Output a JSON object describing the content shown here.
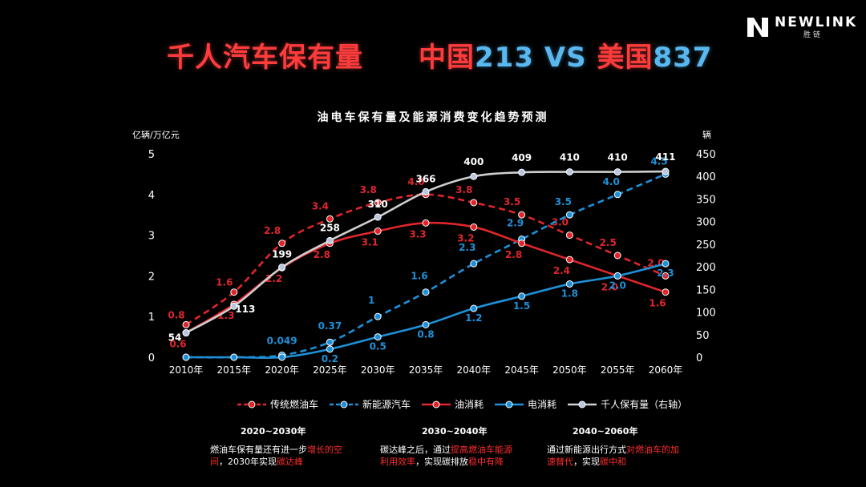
{
  "logo": {
    "name": "NEWLINK",
    "sub": "胜链"
  },
  "headline": {
    "left": "千人汽车保有量",
    "china_label": "中国",
    "china_value": "213",
    "vs": " VS ",
    "us_label": "美国",
    "us_value": "837"
  },
  "colors": {
    "red": "#e0262b",
    "blue": "#1f90d8",
    "white": "#cfcfcf"
  },
  "chart_data": {
    "type": "line",
    "title": "油电车保有量及能源消费变化趋势预测",
    "ylabel_left": "亿辆/万亿元",
    "ylabel_right": "辆",
    "x": [
      "2010年",
      "2015年",
      "2020年",
      "2025年",
      "2030年",
      "2035年",
      "2040年",
      "2045年",
      "2050年",
      "2055年",
      "2060年"
    ],
    "ylim_left": [
      0,
      5
    ],
    "yticks_left": [
      0,
      1,
      2,
      3,
      4,
      5
    ],
    "ylim_right": [
      0,
      450
    ],
    "yticks_right": [
      0,
      50,
      100,
      150,
      200,
      250,
      300,
      350,
      400,
      450
    ],
    "series": [
      {
        "name": "传统燃油车",
        "axis": "left",
        "color": "#e0262b",
        "dashed": true,
        "values": [
          0.8,
          1.6,
          2.8,
          3.4,
          3.8,
          4.0,
          3.8,
          3.5,
          3.0,
          2.5,
          2.0
        ],
        "labels": [
          "0.8",
          "1.6",
          "2.8",
          "3.4",
          "3.8",
          "4.0",
          "3.8",
          "3.5",
          "3.0",
          "2.5",
          "2.0"
        ]
      },
      {
        "name": "新能源汽车",
        "axis": "left",
        "color": "#1f90d8",
        "dashed": true,
        "values": [
          0,
          0,
          0.049,
          0.37,
          1.0,
          1.6,
          2.3,
          2.9,
          3.5,
          4.0,
          4.5
        ],
        "labels": [
          "",
          "",
          "0.049",
          "0.37",
          "1",
          "1.6",
          "2.3",
          "2.9",
          "3.5",
          "4.0",
          "4.5"
        ]
      },
      {
        "name": "油消耗",
        "axis": "left",
        "color": "#e0262b",
        "dashed": false,
        "values": [
          0.6,
          1.3,
          2.2,
          2.8,
          3.1,
          3.3,
          3.2,
          2.8,
          2.4,
          2.0,
          1.6
        ],
        "labels": [
          "0.6",
          "1.3",
          "2.2",
          "2.8",
          "3.1",
          "3.3",
          "3.2",
          "2.8",
          "2.4",
          "2.0",
          "1.6"
        ]
      },
      {
        "name": "电消耗",
        "axis": "left",
        "color": "#1f90d8",
        "dashed": false,
        "values": [
          0,
          0,
          0,
          0.2,
          0.5,
          0.8,
          1.2,
          1.5,
          1.8,
          2.0,
          2.3
        ],
        "labels": [
          "",
          "",
          "",
          "0.2",
          "0.5",
          "0.8",
          "1.2",
          "1.5",
          "1.8",
          "2.0",
          "2.3"
        ]
      },
      {
        "name": "千人保有量（右轴）",
        "axis": "right",
        "color": "#cfcfcf",
        "dashed": false,
        "values": [
          54,
          113,
          199,
          258,
          310,
          366,
          400,
          409,
          410,
          410,
          411
        ],
        "labels": [
          "54",
          "113",
          "199",
          "258",
          "310",
          "366",
          "400",
          "409",
          "410",
          "410",
          "411"
        ]
      }
    ]
  },
  "periods": [
    {
      "title": "2020~2030年",
      "note": [
        {
          "t": "燃油车保有量还有进一步",
          "r": false
        },
        {
          "t": "增长的空间",
          "r": true
        },
        {
          "t": "，2030年实现",
          "r": false
        },
        {
          "t": "碳达峰",
          "r": true
        }
      ]
    },
    {
      "title": "2030~2040年",
      "note": [
        {
          "t": "碳达峰之后，通过",
          "r": false
        },
        {
          "t": "提高燃油车能源利用效率",
          "r": true
        },
        {
          "t": "，实现碳排放",
          "r": false
        },
        {
          "t": "稳中有降",
          "r": true
        }
      ]
    },
    {
      "title": "2040~2060年",
      "note": [
        {
          "t": "通过新能源出行方式",
          "r": false
        },
        {
          "t": "对燃油车的加速替代",
          "r": true
        },
        {
          "t": "，实现",
          "r": false
        },
        {
          "t": "碳中和",
          "r": true
        }
      ]
    }
  ]
}
